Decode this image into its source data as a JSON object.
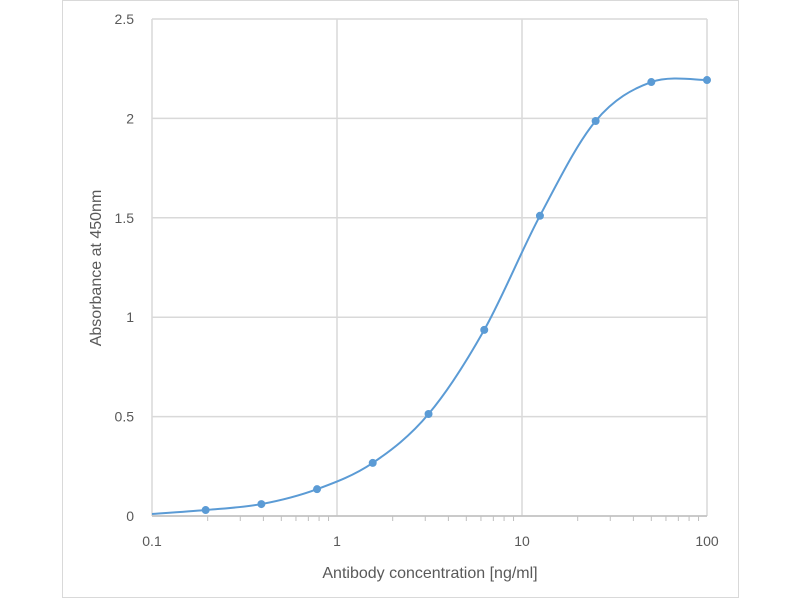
{
  "chart_data": {
    "type": "line",
    "title": "",
    "xlabel": "Antibody concentration [ng/ml]",
    "ylabel": "Absorbance at 450nm",
    "xscale": "log",
    "xlim": [
      0.1,
      100
    ],
    "ylim": [
      0,
      2.5
    ],
    "xticks": [
      "0.1",
      "1",
      "10",
      "100"
    ],
    "yticks": [
      "0",
      "0.5",
      "1",
      "1.5",
      "2",
      "2.5"
    ],
    "grid": true,
    "legend": "none",
    "color": "#5b9bd5",
    "series": [
      {
        "name": "Absorbance",
        "x": [
          0.195,
          0.39,
          0.78,
          1.56,
          3.125,
          6.25,
          12.5,
          25,
          50,
          100
        ],
        "y": [
          0.03,
          0.06,
          0.135,
          0.267,
          0.513,
          0.936,
          1.51,
          1.987,
          2.183,
          2.193
        ]
      }
    ],
    "fit_curve_start": [
      0.1,
      0.01
    ]
  }
}
